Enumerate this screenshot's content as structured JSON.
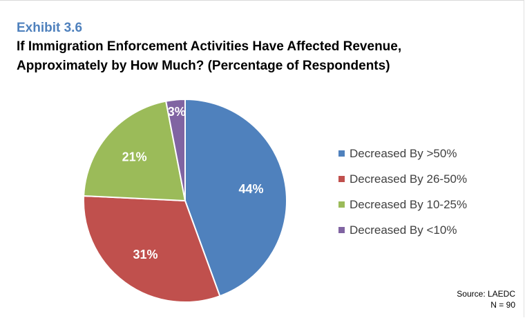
{
  "header": {
    "exhibit": "Exhibit 3.6",
    "title_line1": "If Immigration Enforcement Activities Have Affected Revenue,",
    "title_line2": "Approximately by How Much? (Percentage of Respondents)"
  },
  "source": {
    "line1": "Source: LAEDC",
    "line2": "N = 90"
  },
  "chart_data": {
    "type": "pie",
    "title": "If Immigration Enforcement Activities Have Affected Revenue, Approximately by How Much? (Percentage of Respondents)",
    "slices": [
      {
        "label": "Decreased By >50%",
        "value": 44,
        "display": "44%",
        "color": "#4f81bd"
      },
      {
        "label": "Decreased By 26-50%",
        "value": 31,
        "display": "31%",
        "color": "#c0504d"
      },
      {
        "label": "Decreased By 10-25%",
        "value": 21,
        "display": "21%",
        "color": "#9bbb59"
      },
      {
        "label": "Decreased By <10%",
        "value": 3,
        "display": "3%",
        "color": "#8064a2"
      }
    ],
    "start": "12 o'clock",
    "direction": "clockwise",
    "legend_position": "right",
    "data_labels": "inside"
  }
}
